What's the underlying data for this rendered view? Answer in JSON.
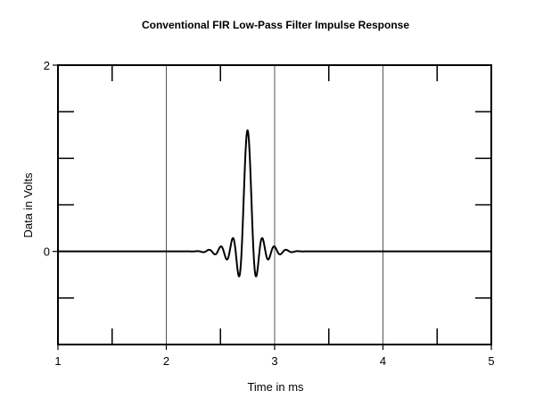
{
  "chart_data": {
    "type": "line",
    "title": "Conventional FIR Low-Pass Filter Impulse Response",
    "xlabel": "Time in ms",
    "ylabel": "Data in Volts",
    "xlim": [
      1,
      5
    ],
    "ylim": [
      -1,
      2
    ],
    "x_ticks": [
      {
        "value": 1,
        "label": "1"
      },
      {
        "value": 2,
        "label": "2"
      },
      {
        "value": 3,
        "label": "3"
      },
      {
        "value": 4,
        "label": "4"
      },
      {
        "value": 5,
        "label": "5"
      }
    ],
    "y_ticks": [
      {
        "value": 0,
        "label": "0"
      },
      {
        "value": 2,
        "label": "2"
      }
    ],
    "minor_x_ticks": [
      1.5,
      2.5,
      3.5,
      4.5
    ],
    "minor_y_ticks": [
      -0.5,
      0.5,
      1,
      1.5
    ],
    "vertical_gridlines": [
      2,
      3,
      4
    ],
    "grid": true,
    "series": [
      {
        "color": "#000000",
        "center_ms": 2.75,
        "peak_volts": 1.3,
        "period_ms": 0.055,
        "support_ms": [
          2.2,
          3.3
        ],
        "samples": [
          {
            "x": 1.0,
            "y": 0.0
          },
          {
            "x": 2.2,
            "y": 0.0
          },
          {
            "x": 2.5,
            "y": 0.04
          },
          {
            "x": 2.6,
            "y": 0.1
          },
          {
            "x": 2.66,
            "y": 0.18
          },
          {
            "x": 2.7,
            "y": -0.5
          },
          {
            "x": 2.75,
            "y": 1.3
          },
          {
            "x": 2.8,
            "y": -0.5
          },
          {
            "x": 2.84,
            "y": 0.18
          },
          {
            "x": 2.9,
            "y": 0.1
          },
          {
            "x": 3.0,
            "y": 0.04
          },
          {
            "x": 3.3,
            "y": 0.0
          },
          {
            "x": 5.0,
            "y": 0.0
          }
        ]
      }
    ]
  }
}
